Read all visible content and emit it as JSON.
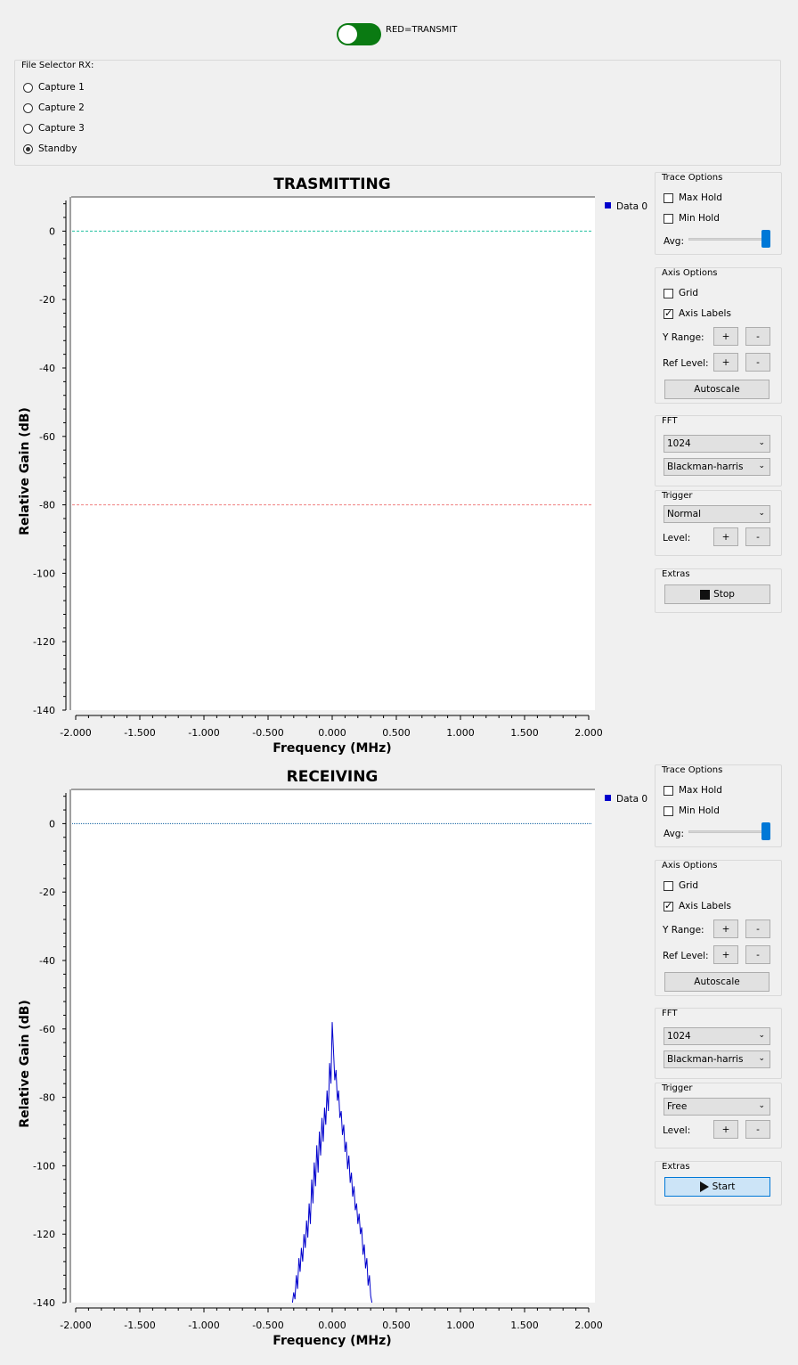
{
  "toggle": {
    "label": "RED=TRANSMIT",
    "on": true,
    "color": "#0a7a12"
  },
  "file_selector": {
    "title": "File Selector RX:",
    "options": [
      "Capture 1",
      "Capture 2",
      "Capture 3",
      "Standby"
    ],
    "selected": "Standby"
  },
  "panels": [
    {
      "title": "TRASMITTING",
      "legend": "Data 0",
      "trace_options": {
        "title": "Trace Options",
        "max_hold": "Max Hold",
        "min_hold": "Min Hold",
        "avg_label": "Avg:",
        "max_hold_checked": false,
        "min_hold_checked": false,
        "avg": 1.0
      },
      "axis_options": {
        "title": "Axis Options",
        "grid": "Grid",
        "grid_checked": false,
        "axis_labels": "Axis Labels",
        "axis_labels_checked": true,
        "y_range": "Y Range:",
        "ref_level": "Ref Level:",
        "plus": "+",
        "minus": "-",
        "autoscale": "Autoscale"
      },
      "fft": {
        "title": "FFT",
        "size": "1024",
        "window": "Blackman-harris"
      },
      "trigger": {
        "title": "Trigger",
        "mode": "Normal",
        "level_label": "Level:",
        "plus": "+",
        "minus": "-"
      },
      "extras": {
        "title": "Extras",
        "button": "Stop"
      }
    },
    {
      "title": "RECEIVING",
      "legend": "Data 0",
      "trace_options": {
        "title": "Trace Options",
        "max_hold": "Max Hold",
        "min_hold": "Min Hold",
        "avg_label": "Avg:",
        "max_hold_checked": false,
        "min_hold_checked": false,
        "avg": 1.0
      },
      "axis_options": {
        "title": "Axis Options",
        "grid": "Grid",
        "grid_checked": false,
        "axis_labels": "Axis Labels",
        "axis_labels_checked": true,
        "y_range": "Y Range:",
        "ref_level": "Ref Level:",
        "plus": "+",
        "minus": "-",
        "autoscale": "Autoscale"
      },
      "fft": {
        "title": "FFT",
        "size": "1024",
        "window": "Blackman-harris"
      },
      "trigger": {
        "title": "Trigger",
        "mode": "Free",
        "level_label": "Level:",
        "plus": "+",
        "minus": "-"
      },
      "extras": {
        "title": "Extras",
        "button": "Start"
      }
    }
  ],
  "chart_data": [
    {
      "type": "line",
      "title": "TRASMITTING",
      "xlabel": "Frequency (MHz)",
      "ylabel": "Relative Gain (dB)",
      "xlim": [
        -2.0,
        2.0
      ],
      "ylim": [
        -140,
        10
      ],
      "xticks": [
        "-2.000",
        "-1.500",
        "-1.000",
        "-0.500",
        "0.000",
        "0.500",
        "1.000",
        "1.500",
        "2.000"
      ],
      "yticks": [
        "0",
        "-20",
        "-40",
        "-60",
        "-80",
        "-100",
        "-120",
        "-140"
      ],
      "grid": false,
      "legend_position": "top-right",
      "reference_lines": [
        {
          "y": 0,
          "color": "#20c0a0",
          "style": "dashed"
        },
        {
          "y": -80,
          "color": "#f08080",
          "style": "dashed"
        }
      ],
      "series": [
        {
          "name": "Data 0",
          "color": "#0000cc",
          "x": [],
          "y": []
        }
      ]
    },
    {
      "type": "line",
      "title": "RECEIVING",
      "xlabel": "Frequency (MHz)",
      "ylabel": "Relative Gain (dB)",
      "xlim": [
        -2.0,
        2.0
      ],
      "ylim": [
        -140,
        10
      ],
      "xticks": [
        "-2.000",
        "-1.500",
        "-1.000",
        "-0.500",
        "0.000",
        "0.500",
        "1.000",
        "1.500",
        "2.000"
      ],
      "yticks": [
        "0",
        "-20",
        "-40",
        "-60",
        "-80",
        "-100",
        "-120",
        "-140"
      ],
      "grid": false,
      "legend_position": "top-right",
      "reference_lines": [
        {
          "y": 0,
          "color": "#1060a0",
          "style": "dotted"
        }
      ],
      "series": [
        {
          "name": "Data 0",
          "color": "#0000cc",
          "x": [
            -0.31,
            -0.3,
            -0.29,
            -0.28,
            -0.27,
            -0.26,
            -0.25,
            -0.24,
            -0.23,
            -0.22,
            -0.21,
            -0.2,
            -0.19,
            -0.18,
            -0.17,
            -0.16,
            -0.15,
            -0.14,
            -0.13,
            -0.12,
            -0.11,
            -0.1,
            -0.09,
            -0.08,
            -0.07,
            -0.06,
            -0.05,
            -0.04,
            -0.03,
            -0.02,
            -0.01,
            0.0,
            0.01,
            0.02,
            0.03,
            0.04,
            0.05,
            0.06,
            0.07,
            0.08,
            0.09,
            0.1,
            0.11,
            0.12,
            0.13,
            0.14,
            0.15,
            0.16,
            0.17,
            0.18,
            0.19,
            0.2,
            0.21,
            0.22,
            0.23,
            0.24,
            0.25,
            0.26,
            0.27,
            0.28,
            0.29,
            0.3,
            0.31
          ],
          "y": [
            -140,
            -137,
            -139,
            -132,
            -136,
            -127,
            -131,
            -124,
            -128,
            -120,
            -124,
            -116,
            -121,
            -111,
            -117,
            -104,
            -111,
            -99,
            -106,
            -94,
            -102,
            -90,
            -97,
            -86,
            -93,
            -83,
            -88,
            -78,
            -84,
            -70,
            -76,
            -58,
            -66,
            -75,
            -72,
            -81,
            -78,
            -86,
            -84,
            -91,
            -88,
            -96,
            -93,
            -101,
            -97,
            -105,
            -102,
            -109,
            -106,
            -113,
            -111,
            -117,
            -114,
            -120,
            -118,
            -126,
            -123,
            -130,
            -127,
            -135,
            -132,
            -138,
            -140
          ]
        }
      ]
    }
  ]
}
